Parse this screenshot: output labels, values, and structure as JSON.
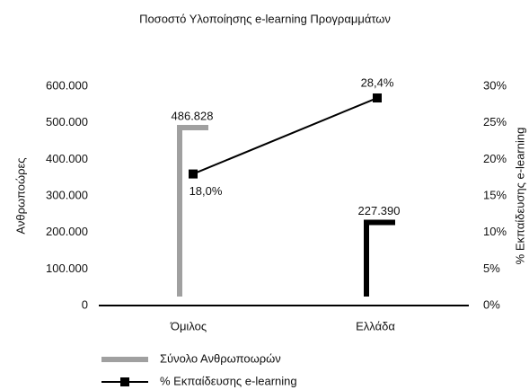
{
  "chart_data": {
    "type": "bar_line",
    "title": "Ποσοστό Υλοποίησης e-learning Προγραμμάτων",
    "ylabel": "Ανθρωποώρες",
    "y2label": "% Εκπαίδευσης e-learning",
    "categories": [
      "Όμιλος",
      "Ελλάδα"
    ],
    "series": [
      {
        "name": "Σύνολο Ανθρωποωρών",
        "type": "bar",
        "color": "#a0a0a0",
        "point_colors": [
          "#a0a0a0",
          "#000000"
        ],
        "values": [
          486828,
          227390
        ],
        "value_labels": [
          "486.828",
          "227.390"
        ]
      },
      {
        "name": "% Εκπαίδευσης e-learning",
        "type": "line",
        "axis": "y2",
        "color": "#000000",
        "values": [
          18.0,
          28.4
        ],
        "value_labels": [
          "18,0%",
          "28,4%"
        ]
      }
    ],
    "ylim": [
      0,
      600000
    ],
    "yticks": [
      0,
      {
        "value": 100000,
        "label": "100.000"
      },
      {
        "value": 200000,
        "label": "200.000"
      },
      {
        "value": 300000,
        "label": "300.000"
      },
      {
        "value": 400000,
        "label": "400.000"
      },
      {
        "value": 500000,
        "label": "500.000"
      },
      {
        "value": 600000,
        "label": "600.000"
      }
    ],
    "y2lim": [
      0,
      30
    ],
    "y2ticks": [
      {
        "value": 0,
        "label": "0%"
      },
      {
        "value": 5,
        "label": "5%"
      },
      {
        "value": 10,
        "label": "10%"
      },
      {
        "value": 15,
        "label": "15%"
      },
      {
        "value": 20,
        "label": "20%"
      },
      {
        "value": 25,
        "label": "25%"
      },
      {
        "value": 30,
        "label": "30%"
      }
    ],
    "legend": "bottom-left"
  }
}
